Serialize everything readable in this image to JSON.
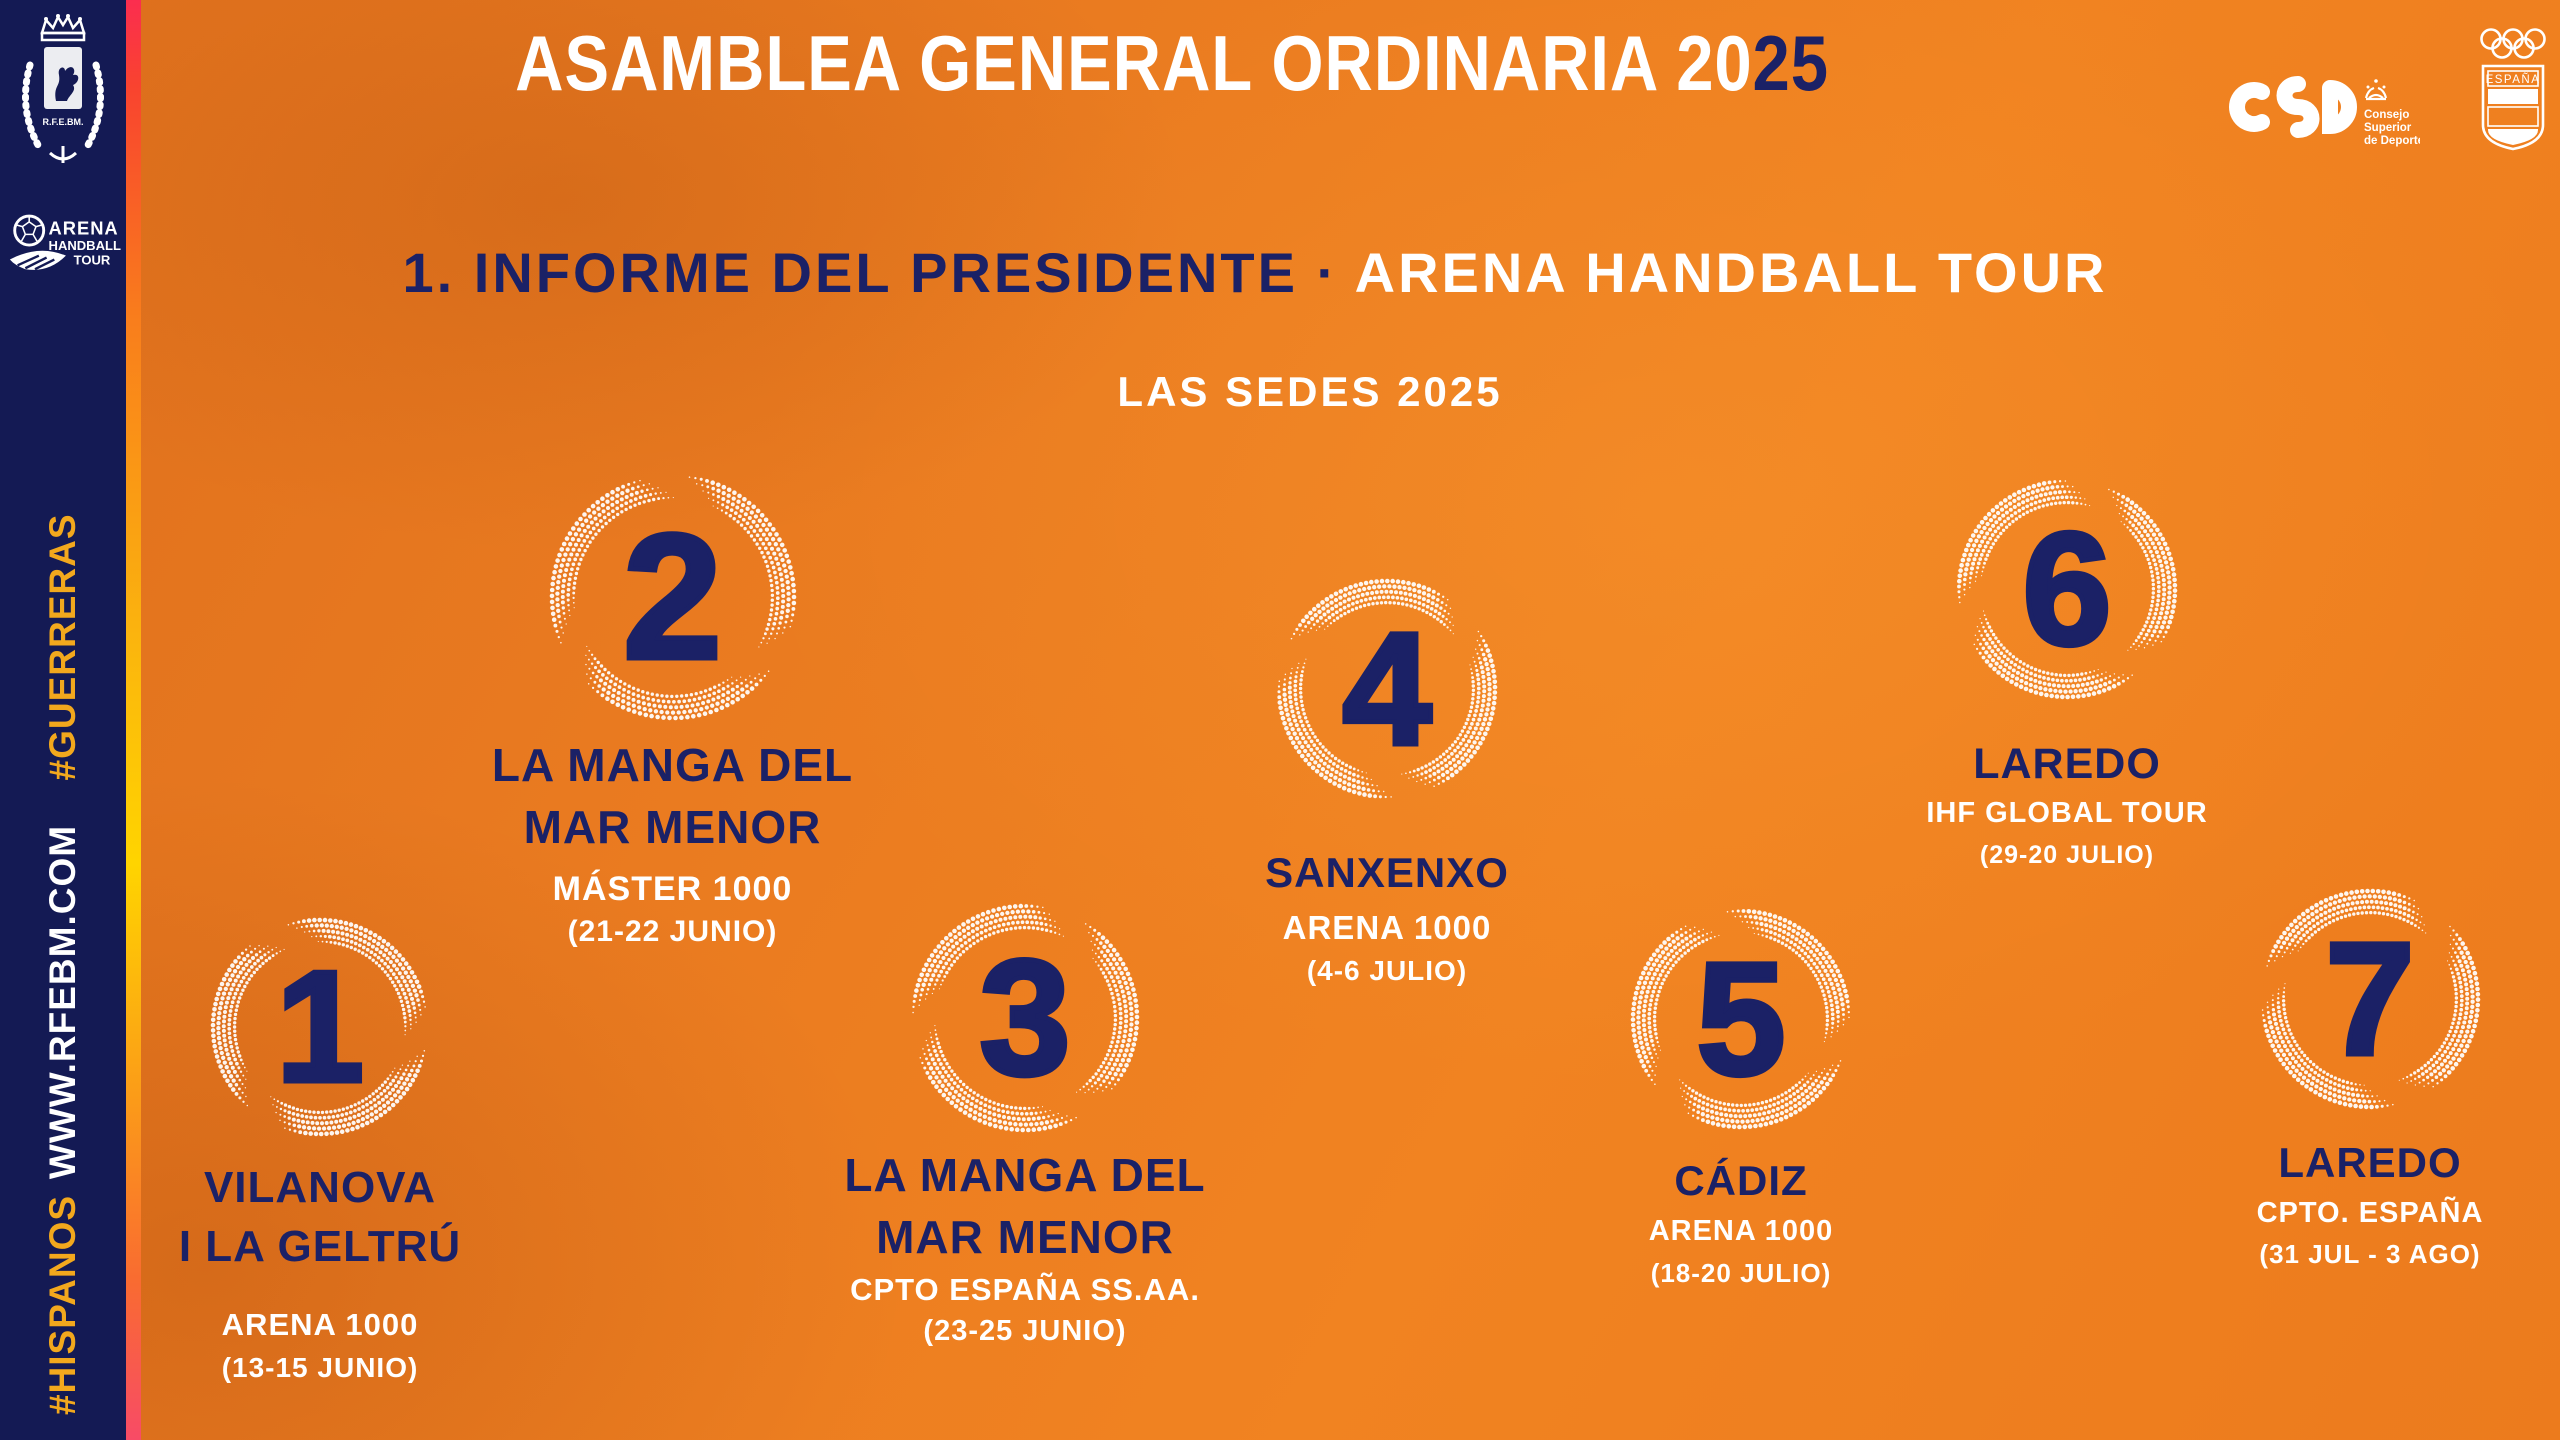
{
  "title": {
    "white": "ASAMBLEA GENERAL ORDINARIA 20",
    "accent": "25"
  },
  "heading": {
    "dark": "1. INFORME DEL PRESIDENTE · ",
    "light": "ARENA HANDBALL TOUR"
  },
  "subheading": "LAS SEDES 2025",
  "sidebar": {
    "crest_caption": "R.F.E.BM.",
    "aht_logo": {
      "line1": "ARENA",
      "line2": "HANDBALL",
      "line3": "TOUR"
    },
    "hashtag_guerreras": "#GUERRERAS",
    "website": "WWW.RFEBM.COM",
    "hashtag_hispanos": "#HISPANOS"
  },
  "logos": {
    "csd": {
      "caption_line1": "Consejo",
      "caption_line2": "Superior",
      "caption_line3": "de Deportes"
    },
    "coe": {
      "country": "ESPAÑA"
    }
  },
  "colors": {
    "navy": "#1b2166",
    "orange": "#ec7b1d",
    "sidebar_navy": "#141a54",
    "yellow": "#f2a81d",
    "white": "#ffffff"
  },
  "venues": [
    {
      "num": "1",
      "name": "VILANOVA\nI LA GELTRÚ",
      "event": "ARENA 1000",
      "dates": "(13-15 JUNIO)"
    },
    {
      "num": "2",
      "name": "LA MANGA DEL\nMAR MENOR",
      "event": "MÁSTER 1000",
      "dates": "(21-22 JUNIO)"
    },
    {
      "num": "3",
      "name": "LA MANGA DEL\nMAR MENOR",
      "event": "CPTO ESPAÑA SS.AA.",
      "dates": "(23-25 JUNIO)"
    },
    {
      "num": "4",
      "name": "SANXENXO",
      "event": "ARENA 1000",
      "dates": "(4-6 JULIO)"
    },
    {
      "num": "5",
      "name": "CÁDIZ",
      "event": "ARENA 1000",
      "dates": "(18-20 JULIO)"
    },
    {
      "num": "6",
      "name": "LAREDO",
      "event": "IHF GLOBAL TOUR",
      "dates": "(29-20 JULIO)"
    },
    {
      "num": "7",
      "name": "LAREDO",
      "event": "CPTO. ESPAÑA",
      "dates": "(31 JUL - 3 AGO)"
    }
  ]
}
